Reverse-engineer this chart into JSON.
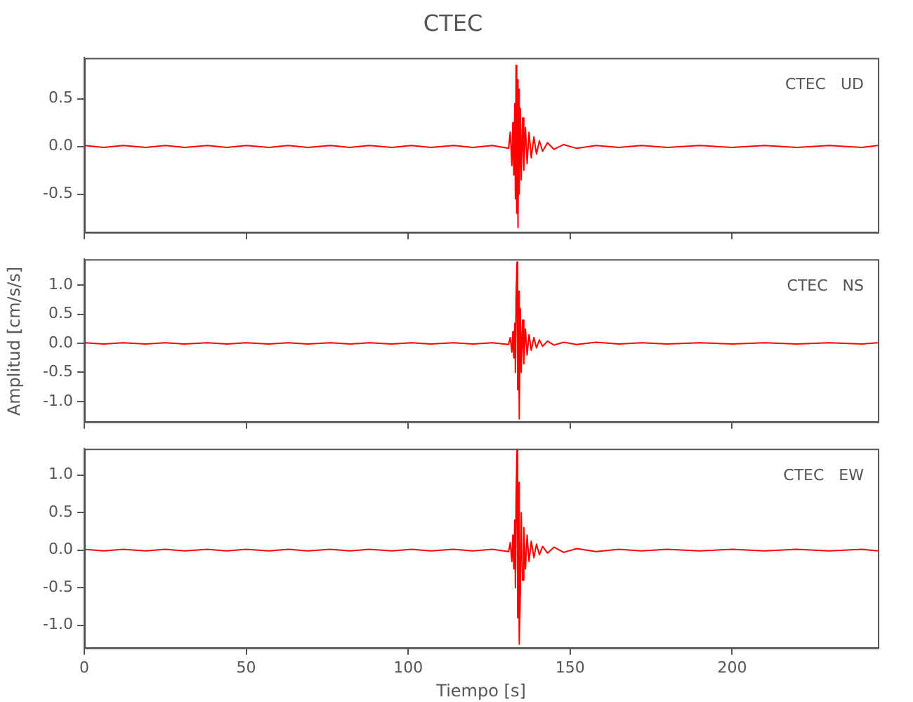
{
  "chart_data": [
    {
      "type": "line",
      "title": "CTEC",
      "annotations": [
        "CTEC   UD"
      ],
      "x": [
        0,
        6,
        12,
        19,
        25,
        31,
        38,
        44,
        50,
        57,
        63,
        69,
        76,
        82,
        88,
        95,
        101,
        107,
        114,
        120,
        126,
        131,
        131.5,
        132,
        132.3,
        132.6,
        132.9,
        133.1,
        133.3,
        133.5,
        133.7,
        133.9,
        134.1,
        134.3,
        134.6,
        134.9,
        135.3,
        135.7,
        136.2,
        136.7,
        137.3,
        138,
        138.8,
        139.6,
        140.5,
        141.5,
        143,
        145,
        148,
        152,
        158,
        165,
        172,
        180,
        190,
        200,
        210,
        220,
        230,
        240,
        245
      ],
      "series": [
        {
          "color": "#ff0000",
          "values": [
            0.01,
            -0.01,
            0.01,
            -0.01,
            0.01,
            -0.01,
            0.01,
            -0.01,
            0.01,
            -0.01,
            0.01,
            -0.01,
            0.01,
            -0.01,
            0.01,
            -0.01,
            0.01,
            -0.01,
            0.01,
            -0.01,
            0.01,
            -0.02,
            0.15,
            -0.2,
            0.25,
            -0.3,
            0.45,
            -0.55,
            0.85,
            -0.7,
            0.7,
            -0.85,
            0.6,
            -0.5,
            0.4,
            -0.35,
            0.3,
            -0.25,
            0.2,
            -0.18,
            0.15,
            -0.12,
            0.1,
            -0.08,
            0.06,
            -0.05,
            0.04,
            -0.03,
            0.02,
            -0.02,
            0.01,
            -0.01,
            0.01,
            -0.01,
            0.01,
            -0.01,
            0.01,
            -0.01,
            0.01,
            -0.01,
            0.01
          ]
        }
      ],
      "xlim": [
        0,
        245
      ],
      "xticks": [
        0,
        50,
        100,
        150,
        200
      ],
      "ylim": [
        -0.9,
        0.93
      ],
      "yticks": [
        {
          "value": 0.5,
          "label": "0.5"
        },
        {
          "value": 0,
          "label": "0.0"
        },
        {
          "value": -0.5,
          "label": "-0.5"
        }
      ],
      "tick_labels": "y",
      "grid": false,
      "legend": false
    },
    {
      "type": "line",
      "ylabel": "Amplitud [cm/s/s]",
      "annotations": [
        "CTEC   NS"
      ],
      "x": [
        0,
        6,
        12,
        19,
        25,
        31,
        38,
        44,
        50,
        57,
        63,
        69,
        76,
        82,
        88,
        95,
        101,
        107,
        114,
        120,
        126,
        131,
        131.5,
        132,
        132.3,
        132.6,
        132.9,
        133.1,
        133.3,
        133.6,
        133.8,
        134,
        134.3,
        134.6,
        134.9,
        135.3,
        135.7,
        136.2,
        136.7,
        137.3,
        138,
        138.8,
        139.6,
        140.5,
        141.5,
        143,
        145,
        148,
        152,
        158,
        165,
        172,
        180,
        190,
        200,
        210,
        220,
        230,
        240,
        245
      ],
      "series": [
        {
          "color": "#ff0000",
          "values": [
            0.01,
            -0.01,
            0.01,
            -0.01,
            0.01,
            -0.01,
            0.01,
            -0.01,
            0.01,
            -0.01,
            0.01,
            -0.01,
            0.01,
            -0.01,
            0.01,
            -0.01,
            0.01,
            -0.01,
            0.01,
            -0.01,
            0.01,
            -0.02,
            0.1,
            -0.15,
            0.2,
            -0.25,
            0.35,
            -0.5,
            0.8,
            1.4,
            -0.8,
            0.9,
            -1.3,
            0.6,
            -0.5,
            0.4,
            -0.35,
            0.25,
            -0.2,
            0.15,
            -0.12,
            0.1,
            -0.08,
            0.06,
            -0.05,
            0.04,
            -0.03,
            0.02,
            -0.02,
            0.02,
            -0.01,
            0.01,
            -0.01,
            0.01,
            -0.01,
            0.01,
            -0.01,
            0.01,
            -0.01,
            0.01
          ]
        }
      ],
      "xlim": [
        0,
        245
      ],
      "xticks": [
        0,
        50,
        100,
        150,
        200
      ],
      "ylim": [
        -1.35,
        1.45
      ],
      "yticks": [
        {
          "value": 1,
          "label": "1.0"
        },
        {
          "value": 0.5,
          "label": "0.5"
        },
        {
          "value": 0,
          "label": "0.0"
        },
        {
          "value": -0.5,
          "label": "-0.5"
        },
        {
          "value": -1,
          "label": "-1.0"
        }
      ],
      "tick_labels": "y",
      "grid": false,
      "legend": false
    },
    {
      "type": "line",
      "xlabel": "Tiempo [s]",
      "annotations": [
        "CTEC   EW"
      ],
      "x": [
        0,
        6,
        12,
        19,
        25,
        31,
        38,
        44,
        50,
        57,
        63,
        69,
        76,
        82,
        88,
        95,
        101,
        107,
        114,
        120,
        126,
        131,
        131.5,
        132,
        132.3,
        132.6,
        132.9,
        133.1,
        133.3,
        133.6,
        133.8,
        134,
        134.3,
        134.6,
        134.9,
        135.3,
        135.7,
        136.2,
        136.7,
        137.3,
        138,
        138.8,
        139.6,
        140.5,
        141.5,
        143,
        145,
        148,
        152,
        158,
        165,
        172,
        180,
        190,
        200,
        210,
        220,
        230,
        240,
        245
      ],
      "series": [
        {
          "color": "#ff0000",
          "values": [
            0.01,
            -0.01,
            0.01,
            -0.01,
            0.01,
            -0.01,
            0.01,
            -0.01,
            0.01,
            -0.01,
            0.01,
            -0.01,
            0.01,
            -0.01,
            0.01,
            -0.01,
            0.01,
            -0.01,
            0.01,
            -0.01,
            0.01,
            -0.02,
            0.1,
            -0.15,
            0.2,
            -0.25,
            0.4,
            -0.5,
            0.7,
            1.35,
            -0.9,
            0.9,
            -1.25,
            -0.6,
            0.5,
            -0.4,
            0.3,
            -0.25,
            0.2,
            -0.15,
            0.12,
            -0.1,
            0.08,
            -0.06,
            0.05,
            -0.04,
            0.04,
            -0.03,
            0.02,
            -0.02,
            0.01,
            -0.01,
            0.01,
            -0.01,
            0.01,
            -0.01,
            0.01,
            -0.01,
            0.01,
            -0.01
          ]
        }
      ],
      "xlim": [
        0,
        245
      ],
      "xticks": [
        0,
        50,
        100,
        150,
        200
      ],
      "ylim": [
        -1.3,
        1.35
      ],
      "yticks": [
        {
          "value": 1,
          "label": "1.0"
        },
        {
          "value": 0.5,
          "label": "0.5"
        },
        {
          "value": 0,
          "label": "0.0"
        },
        {
          "value": -0.5,
          "label": "-0.5"
        },
        {
          "value": -1,
          "label": "-1.0"
        }
      ],
      "grid": false,
      "legend": false
    }
  ]
}
